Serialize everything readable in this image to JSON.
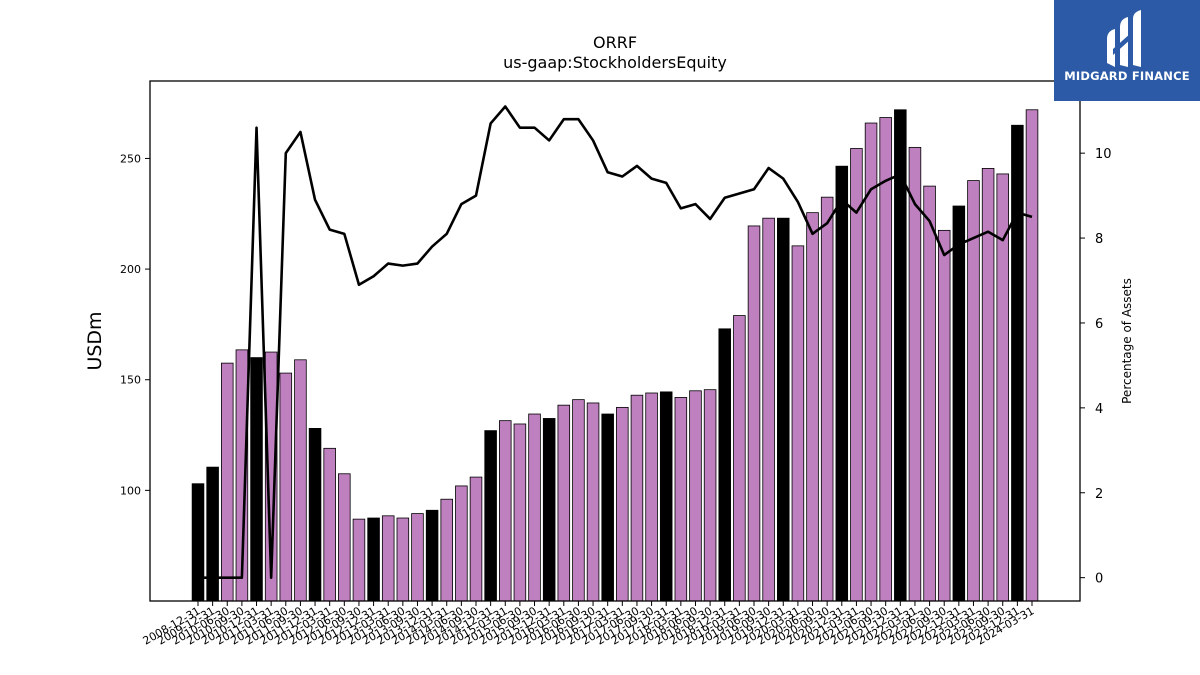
{
  "chart_data": {
    "type": "bar+line",
    "title": "ORRF",
    "subtitle": "us-gaap:StockholdersEquity",
    "ylabel": "USDm",
    "y2label": "Percentage of Assets",
    "ylim": [
      50,
      285
    ],
    "y2lim": [
      -0.55,
      11.7
    ],
    "yticks": [
      100,
      150,
      200,
      250
    ],
    "y2ticks": [
      0,
      2,
      4,
      6,
      8,
      10
    ],
    "grid": false,
    "legend": "none",
    "colors": {
      "bar_dark": "#000000",
      "bar_light": "#bf80bf",
      "line": "#000000"
    },
    "categories": [
      "2008-12-31",
      "2009-12-31",
      "2010-06-30",
      "2010-09-30",
      "2010-12-31",
      "2011-03-31",
      "2011-06-30",
      "2011-09-30",
      "2011-12-31",
      "2012-03-31",
      "2012-06-30",
      "2012-09-30",
      "2012-12-31",
      "2013-03-31",
      "2013-06-30",
      "2013-09-30",
      "2013-12-31",
      "2014-03-31",
      "2014-06-30",
      "2014-09-30",
      "2014-12-31",
      "2015-03-31",
      "2015-06-30",
      "2015-09-30",
      "2015-12-31",
      "2016-03-31",
      "2016-06-30",
      "2016-09-30",
      "2016-12-31",
      "2017-03-31",
      "2017-06-30",
      "2017-09-30",
      "2017-12-31",
      "2018-03-31",
      "2018-06-30",
      "2018-09-30",
      "2018-12-31",
      "2019-03-31",
      "2019-06-30",
      "2019-09-30",
      "2019-12-31",
      "2020-03-31",
      "2020-06-30",
      "2020-09-30",
      "2020-12-31",
      "2021-03-31",
      "2021-06-30",
      "2021-09-30",
      "2021-12-31",
      "2022-03-31",
      "2022-06-30",
      "2022-09-30",
      "2022-12-31",
      "2023-03-31",
      "2023-06-30",
      "2023-09-30",
      "2023-12-31",
      "2024-03-31"
    ],
    "series": [
      {
        "kind": "bar",
        "values": [
          103,
          110.5,
          157.5,
          163.5,
          160,
          162.5,
          153,
          159,
          128,
          119,
          107.5,
          87,
          87.5,
          88.5,
          87.5,
          89.5,
          91,
          96,
          102,
          106,
          127,
          131.5,
          130,
          134.5,
          132.5,
          138.5,
          141,
          139.5,
          134.5,
          137.5,
          143,
          144,
          144.5,
          142,
          145,
          145.5,
          173,
          179,
          219.5,
          223,
          223,
          210.5,
          225.5,
          232.5,
          246.5,
          254.5,
          266,
          268.5,
          272,
          255,
          237.5,
          217.5,
          228.5,
          240,
          245.5,
          243,
          265,
          272
        ],
        "dark": [
          true,
          true,
          false,
          false,
          true,
          false,
          false,
          false,
          true,
          false,
          false,
          false,
          true,
          false,
          false,
          false,
          true,
          false,
          false,
          false,
          true,
          false,
          false,
          false,
          true,
          false,
          false,
          false,
          true,
          false,
          false,
          false,
          true,
          false,
          false,
          false,
          true,
          false,
          false,
          false,
          true,
          false,
          false,
          false,
          true,
          false,
          false,
          false,
          true,
          false,
          false,
          false,
          true,
          false,
          false,
          false,
          true,
          false
        ]
      },
      {
        "kind": "line",
        "axis": "y2",
        "values": [
          0,
          0,
          0,
          0,
          10.6,
          0,
          10,
          10.5,
          8.9,
          8.2,
          8.1,
          6.9,
          7.1,
          7.4,
          7.35,
          7.4,
          7.8,
          8.1,
          8.8,
          9.0,
          10.7,
          11.1,
          10.6,
          10.6,
          10.3,
          10.8,
          10.8,
          10.3,
          9.55,
          9.45,
          9.7,
          9.4,
          9.3,
          8.7,
          8.8,
          8.45,
          8.95,
          9.05,
          9.15,
          9.65,
          9.4,
          8.85,
          8.1,
          8.35,
          8.9,
          8.6,
          9.15,
          9.35,
          9.5,
          8.8,
          8.4,
          7.6,
          7.85,
          8.0,
          8.15,
          7.95,
          8.6,
          8.5
        ]
      }
    ]
  },
  "logo": {
    "text": "MIDGARD FINANCE",
    "icon": "midgard-logo-icon",
    "bg": "#2c5aa6"
  }
}
